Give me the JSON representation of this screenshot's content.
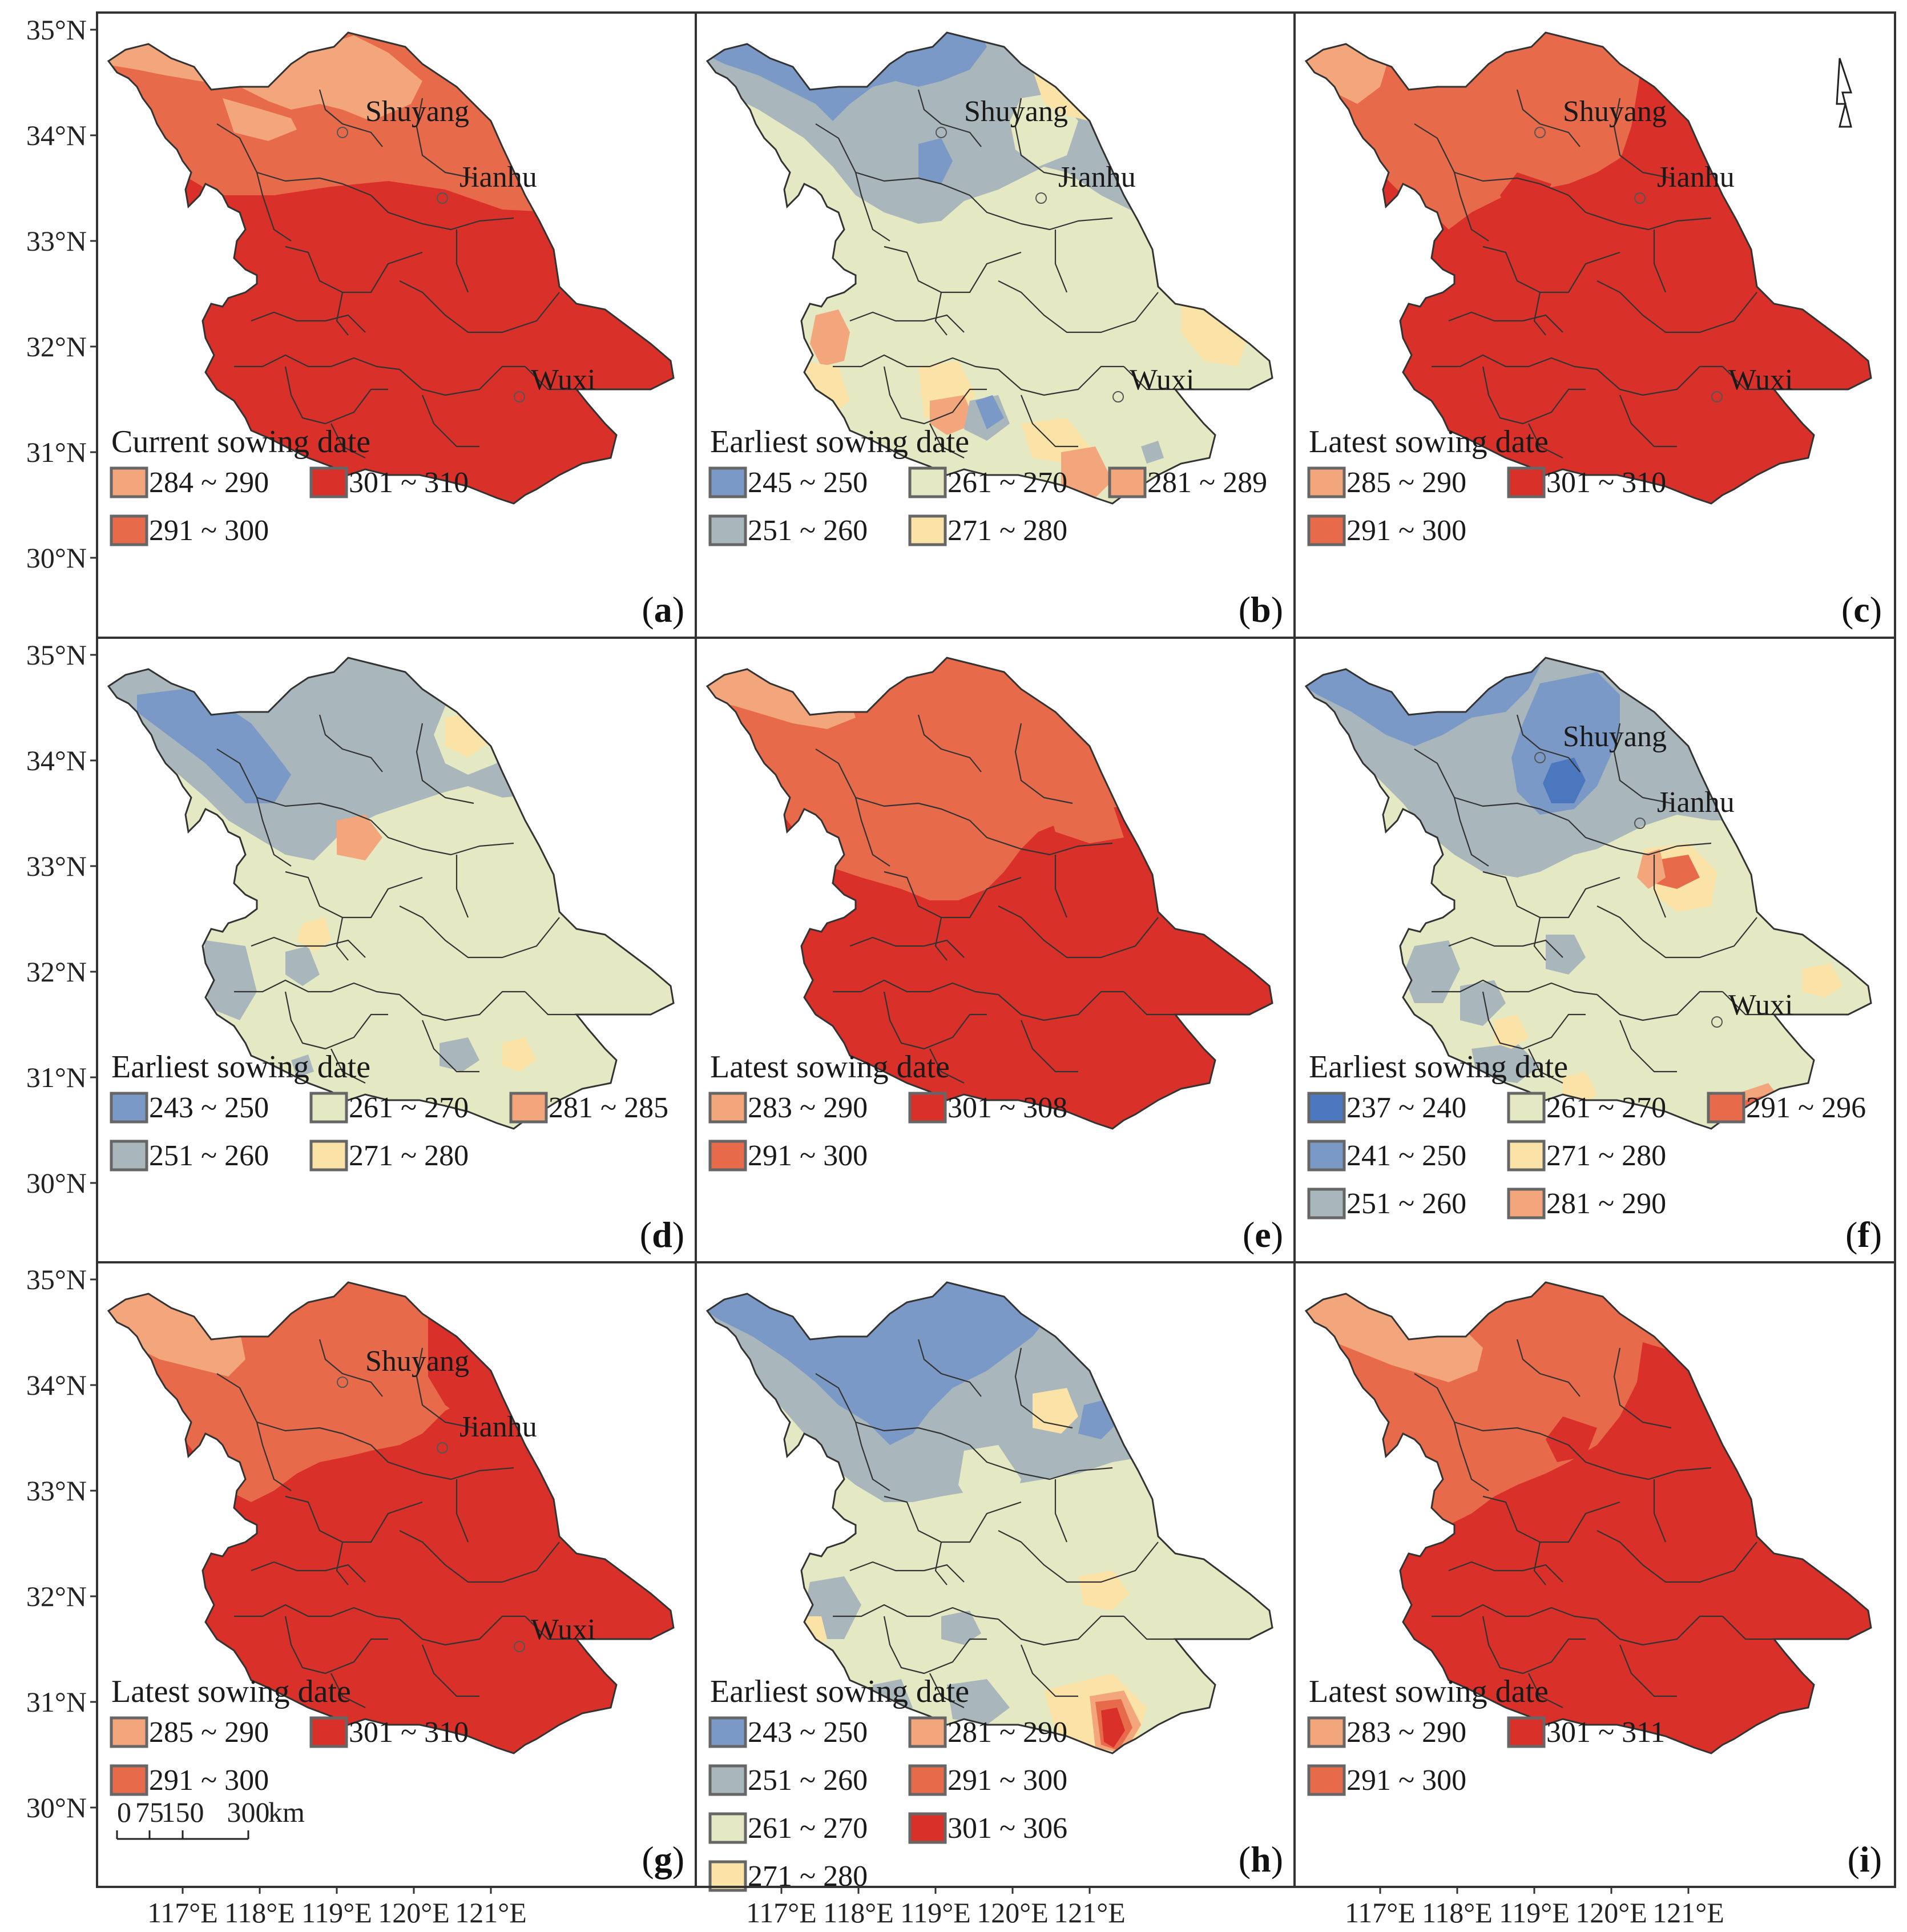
{
  "latitude_labels": [
    "35°N",
    "34°N",
    "33°N",
    "32°N",
    "31°N",
    "30°N"
  ],
  "longitude_labels": [
    "117°E",
    "118°E",
    "119°E",
    "120°E",
    "121°E"
  ],
  "scale_bar": {
    "ticks": [
      "0",
      "75",
      "150",
      "300"
    ],
    "unit": "km"
  },
  "cities": [
    "Shuyang",
    "Jianhu",
    "Wuxi"
  ],
  "colors": {
    "darkblue": "#4a77be",
    "blue": "#7a99c6",
    "grey": "#a9b6bb",
    "green": "#e4e9c4",
    "yellow": "#fbe2a6",
    "peach": "#f3a57b",
    "orange": "#e76a4a",
    "red": "#d9302a",
    "boundary": "#333333"
  },
  "panels": [
    {
      "letter": "a",
      "title": "Current sowing date",
      "base": "red",
      "zones": "north-orange",
      "show_cities": true,
      "legend_columns": 2,
      "legend": [
        {
          "label": "284 ~ 290",
          "color": "peach"
        },
        {
          "label": "291 ~ 300",
          "color": "orange"
        },
        {
          "label": "301 ~ 310",
          "color": "red"
        }
      ]
    },
    {
      "letter": "b",
      "title": "Earliest sowing date",
      "base": "green",
      "zones": "cool-b",
      "show_cities": true,
      "legend_columns": 3,
      "legend": [
        {
          "label": "245 ~ 250",
          "color": "blue"
        },
        {
          "label": "251 ~ 260",
          "color": "grey"
        },
        {
          "label": "261 ~ 270",
          "color": "green"
        },
        {
          "label": "271 ~ 280",
          "color": "yellow"
        },
        {
          "label": "281 ~ 289",
          "color": "peach"
        }
      ]
    },
    {
      "letter": "c",
      "title": "Latest sowing date",
      "base": "red",
      "zones": "north-orange-c",
      "show_cities": true,
      "legend_columns": 2,
      "legend": [
        {
          "label": "285 ~ 290",
          "color": "peach"
        },
        {
          "label": "291 ~ 300",
          "color": "orange"
        },
        {
          "label": "301 ~ 310",
          "color": "red"
        }
      ]
    },
    {
      "letter": "d",
      "title": "Earliest sowing date",
      "base": "green",
      "zones": "cool-d",
      "show_cities": false,
      "legend_columns": 3,
      "legend": [
        {
          "label": "243 ~ 250",
          "color": "blue"
        },
        {
          "label": "251 ~ 260",
          "color": "grey"
        },
        {
          "label": "261 ~ 270",
          "color": "green"
        },
        {
          "label": "271 ~ 280",
          "color": "yellow"
        },
        {
          "label": "281 ~ 285",
          "color": "peach"
        }
      ]
    },
    {
      "letter": "e",
      "title": "Latest sowing date",
      "base": "red",
      "zones": "north-orange-e",
      "show_cities": false,
      "legend_columns": 2,
      "legend": [
        {
          "label": "283 ~ 290",
          "color": "peach"
        },
        {
          "label": "291 ~ 300",
          "color": "orange"
        },
        {
          "label": "301 ~ 308",
          "color": "red"
        }
      ]
    },
    {
      "letter": "f",
      "title": "Earliest sowing date",
      "base": "green",
      "zones": "cool-f",
      "show_cities": true,
      "legend_columns": 3,
      "legend": [
        {
          "label": "237 ~ 240",
          "color": "darkblue"
        },
        {
          "label": "241 ~ 250",
          "color": "blue"
        },
        {
          "label": "251 ~ 260",
          "color": "grey"
        },
        {
          "label": "261 ~ 270",
          "color": "green"
        },
        {
          "label": "271 ~ 280",
          "color": "yellow"
        },
        {
          "label": "281 ~ 290",
          "color": "peach"
        },
        {
          "label": "291 ~ 296",
          "color": "orange"
        }
      ]
    },
    {
      "letter": "g",
      "title": "Latest sowing date",
      "base": "red",
      "zones": "north-orange-g",
      "show_cities": true,
      "legend_columns": 2,
      "legend": [
        {
          "label": "285 ~ 290",
          "color": "peach"
        },
        {
          "label": "291 ~ 300",
          "color": "orange"
        },
        {
          "label": "301 ~ 310",
          "color": "red"
        }
      ]
    },
    {
      "letter": "h",
      "title": "Earliest sowing date",
      "base": "green",
      "zones": "cool-h",
      "show_cities": false,
      "legend_columns": 2,
      "legend": [
        {
          "label": "243 ~ 250",
          "color": "blue"
        },
        {
          "label": "251 ~ 260",
          "color": "grey"
        },
        {
          "label": "261 ~ 270",
          "color": "green"
        },
        {
          "label": "271 ~ 280",
          "color": "yellow"
        },
        {
          "label": "281 ~ 290",
          "color": "peach"
        },
        {
          "label": "291 ~ 300",
          "color": "orange"
        },
        {
          "label": "301 ~ 306",
          "color": "red"
        }
      ]
    },
    {
      "letter": "i",
      "title": "Latest sowing date",
      "base": "red",
      "zones": "north-orange-i",
      "show_cities": false,
      "legend_columns": 2,
      "legend": [
        {
          "label": "283 ~ 290",
          "color": "peach"
        },
        {
          "label": "291 ~ 300",
          "color": "orange"
        },
        {
          "label": "301 ~ 311",
          "color": "red"
        }
      ]
    }
  ]
}
